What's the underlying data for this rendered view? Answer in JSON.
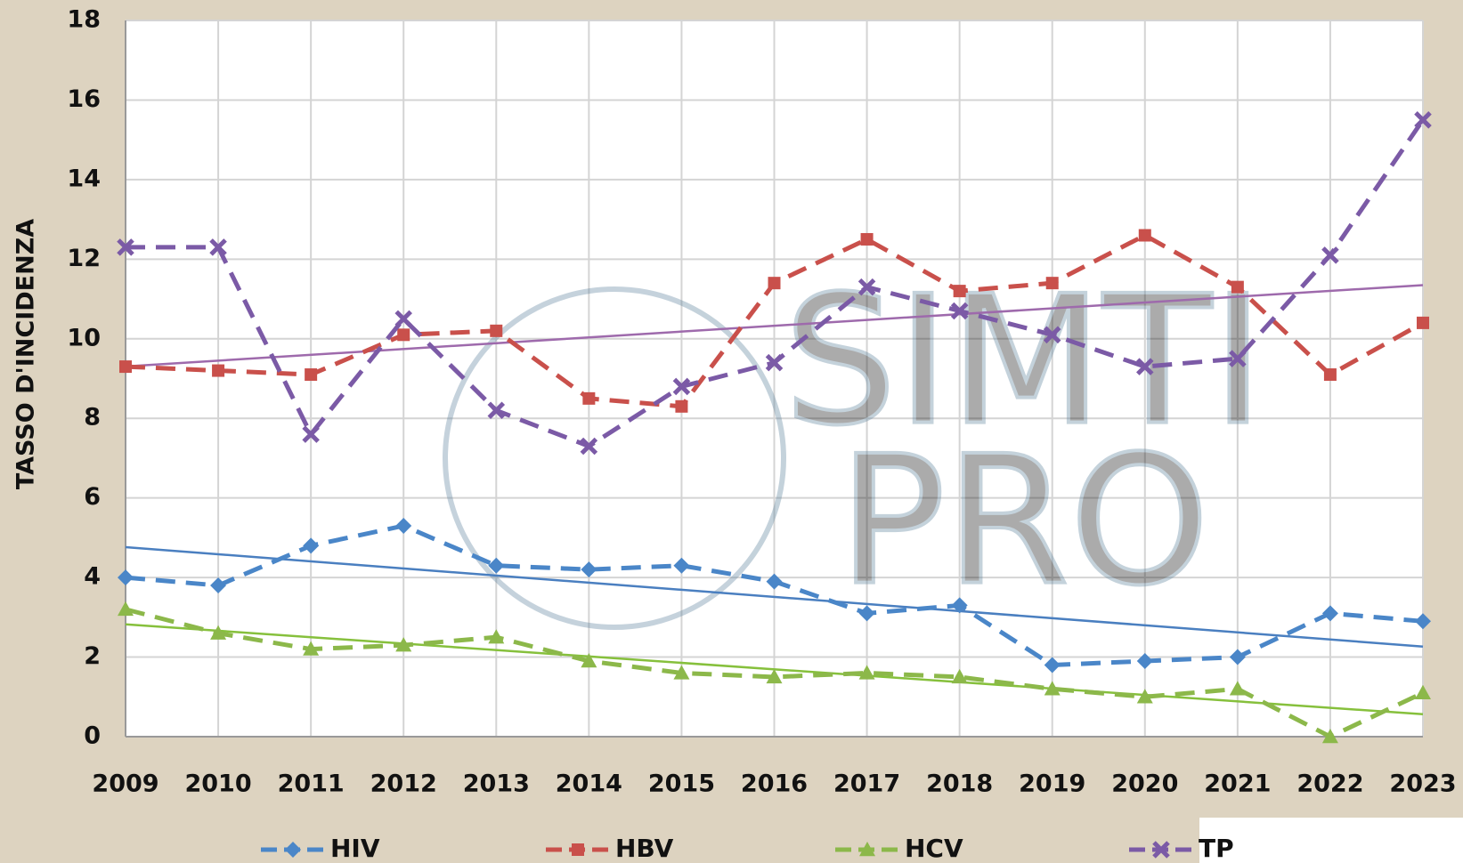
{
  "chart_data": {
    "type": "line",
    "y_label": "TASSO D'INCIDENZA",
    "watermark": [
      "SIMTI",
      "PRO"
    ],
    "x": [
      2009,
      2010,
      2011,
      2012,
      2013,
      2014,
      2015,
      2016,
      2017,
      2018,
      2019,
      2020,
      2021,
      2022,
      2023
    ],
    "xlim": [
      2009,
      2023
    ],
    "xticks": [
      2009,
      2010,
      2011,
      2012,
      2013,
      2014,
      2015,
      2016,
      2017,
      2018,
      2019,
      2020,
      2021,
      2022,
      2023
    ],
    "ylim": [
      0,
      18
    ],
    "yticks": [
      0,
      2,
      4,
      6,
      8,
      10,
      12,
      14,
      16,
      18
    ],
    "grid": true,
    "legend": "bottom",
    "series": [
      {
        "name": "HIV",
        "color": "#4a86c8",
        "marker": "diamond",
        "trendline": true,
        "trend_color": "#4a7fc0",
        "values": [
          4.0,
          3.8,
          4.8,
          5.3,
          4.3,
          4.2,
          4.3,
          3.9,
          3.1,
          3.3,
          1.8,
          1.9,
          2.0,
          3.1,
          2.9
        ]
      },
      {
        "name": "HBV",
        "color": "#c9504b",
        "marker": "square",
        "trendline": false,
        "values": [
          9.3,
          9.2,
          9.1,
          10.1,
          10.2,
          8.5,
          8.3,
          11.4,
          12.5,
          11.2,
          11.4,
          12.6,
          11.3,
          9.1,
          10.4
        ]
      },
      {
        "name": "HCV",
        "color": "#8cb84a",
        "marker": "triangle",
        "trendline": true,
        "trend_color": "#86c03c",
        "values": [
          3.2,
          2.6,
          2.2,
          2.3,
          2.5,
          1.9,
          1.6,
          1.5,
          1.6,
          1.5,
          1.2,
          1.0,
          1.2,
          0.0,
          1.1
        ]
      },
      {
        "name": "TP",
        "color": "#7b5aa6",
        "marker": "x",
        "trendline": true,
        "trend_color": "#9e6aac",
        "values": [
          12.3,
          12.3,
          7.6,
          10.5,
          8.2,
          7.3,
          8.8,
          9.4,
          11.3,
          10.7,
          10.1,
          9.3,
          9.5,
          12.1,
          15.5
        ]
      }
    ]
  }
}
